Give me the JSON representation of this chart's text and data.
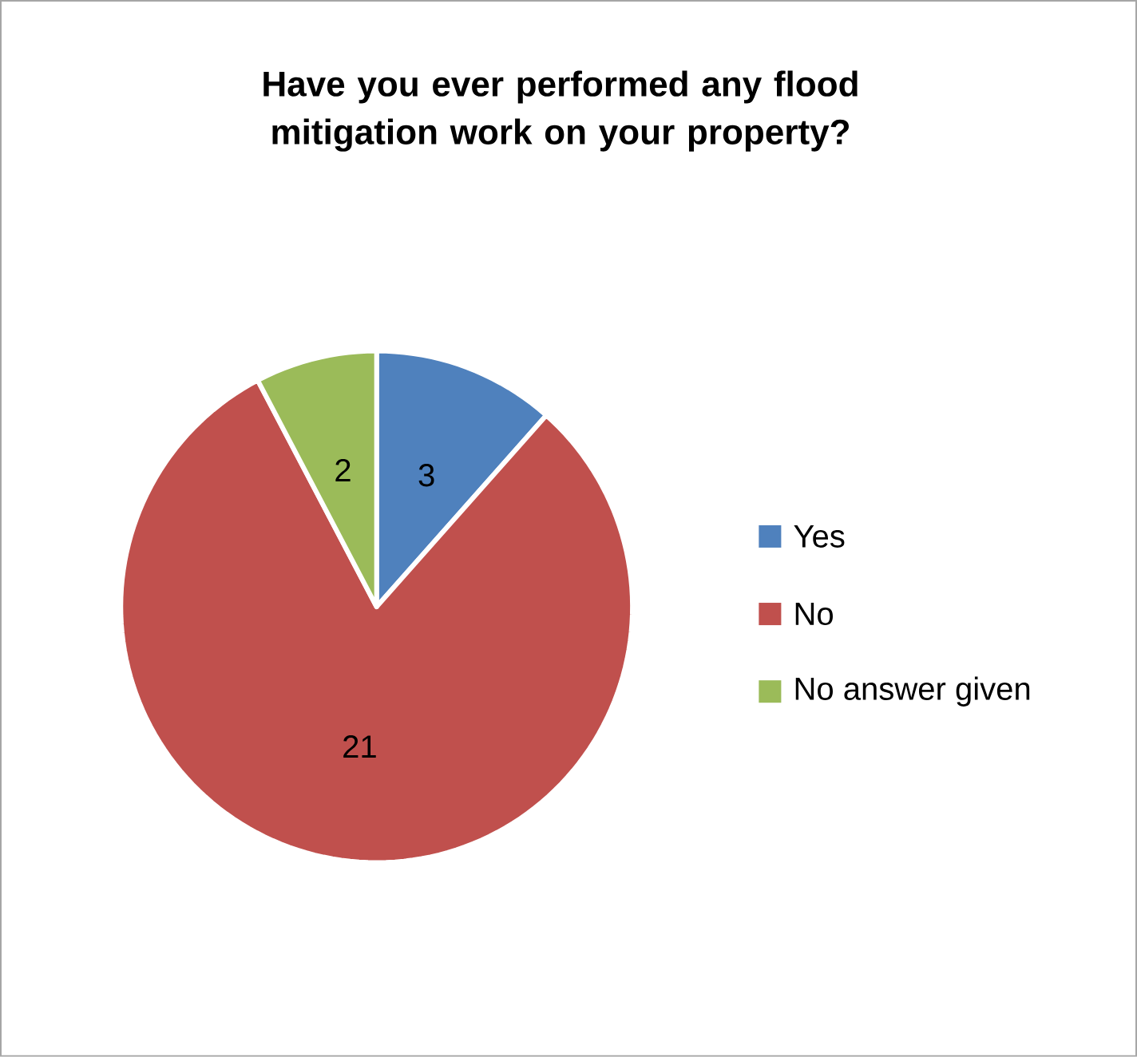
{
  "chart_data": {
    "type": "pie",
    "title": "Have you ever performed any flood mitigation work on your property?",
    "categories": [
      "Yes",
      "No",
      "No answer given"
    ],
    "values": [
      3,
      21,
      2
    ],
    "colors": [
      "#4f81bd",
      "#c0504d",
      "#9bbb59"
    ],
    "data_labels": true,
    "legend": "right"
  }
}
